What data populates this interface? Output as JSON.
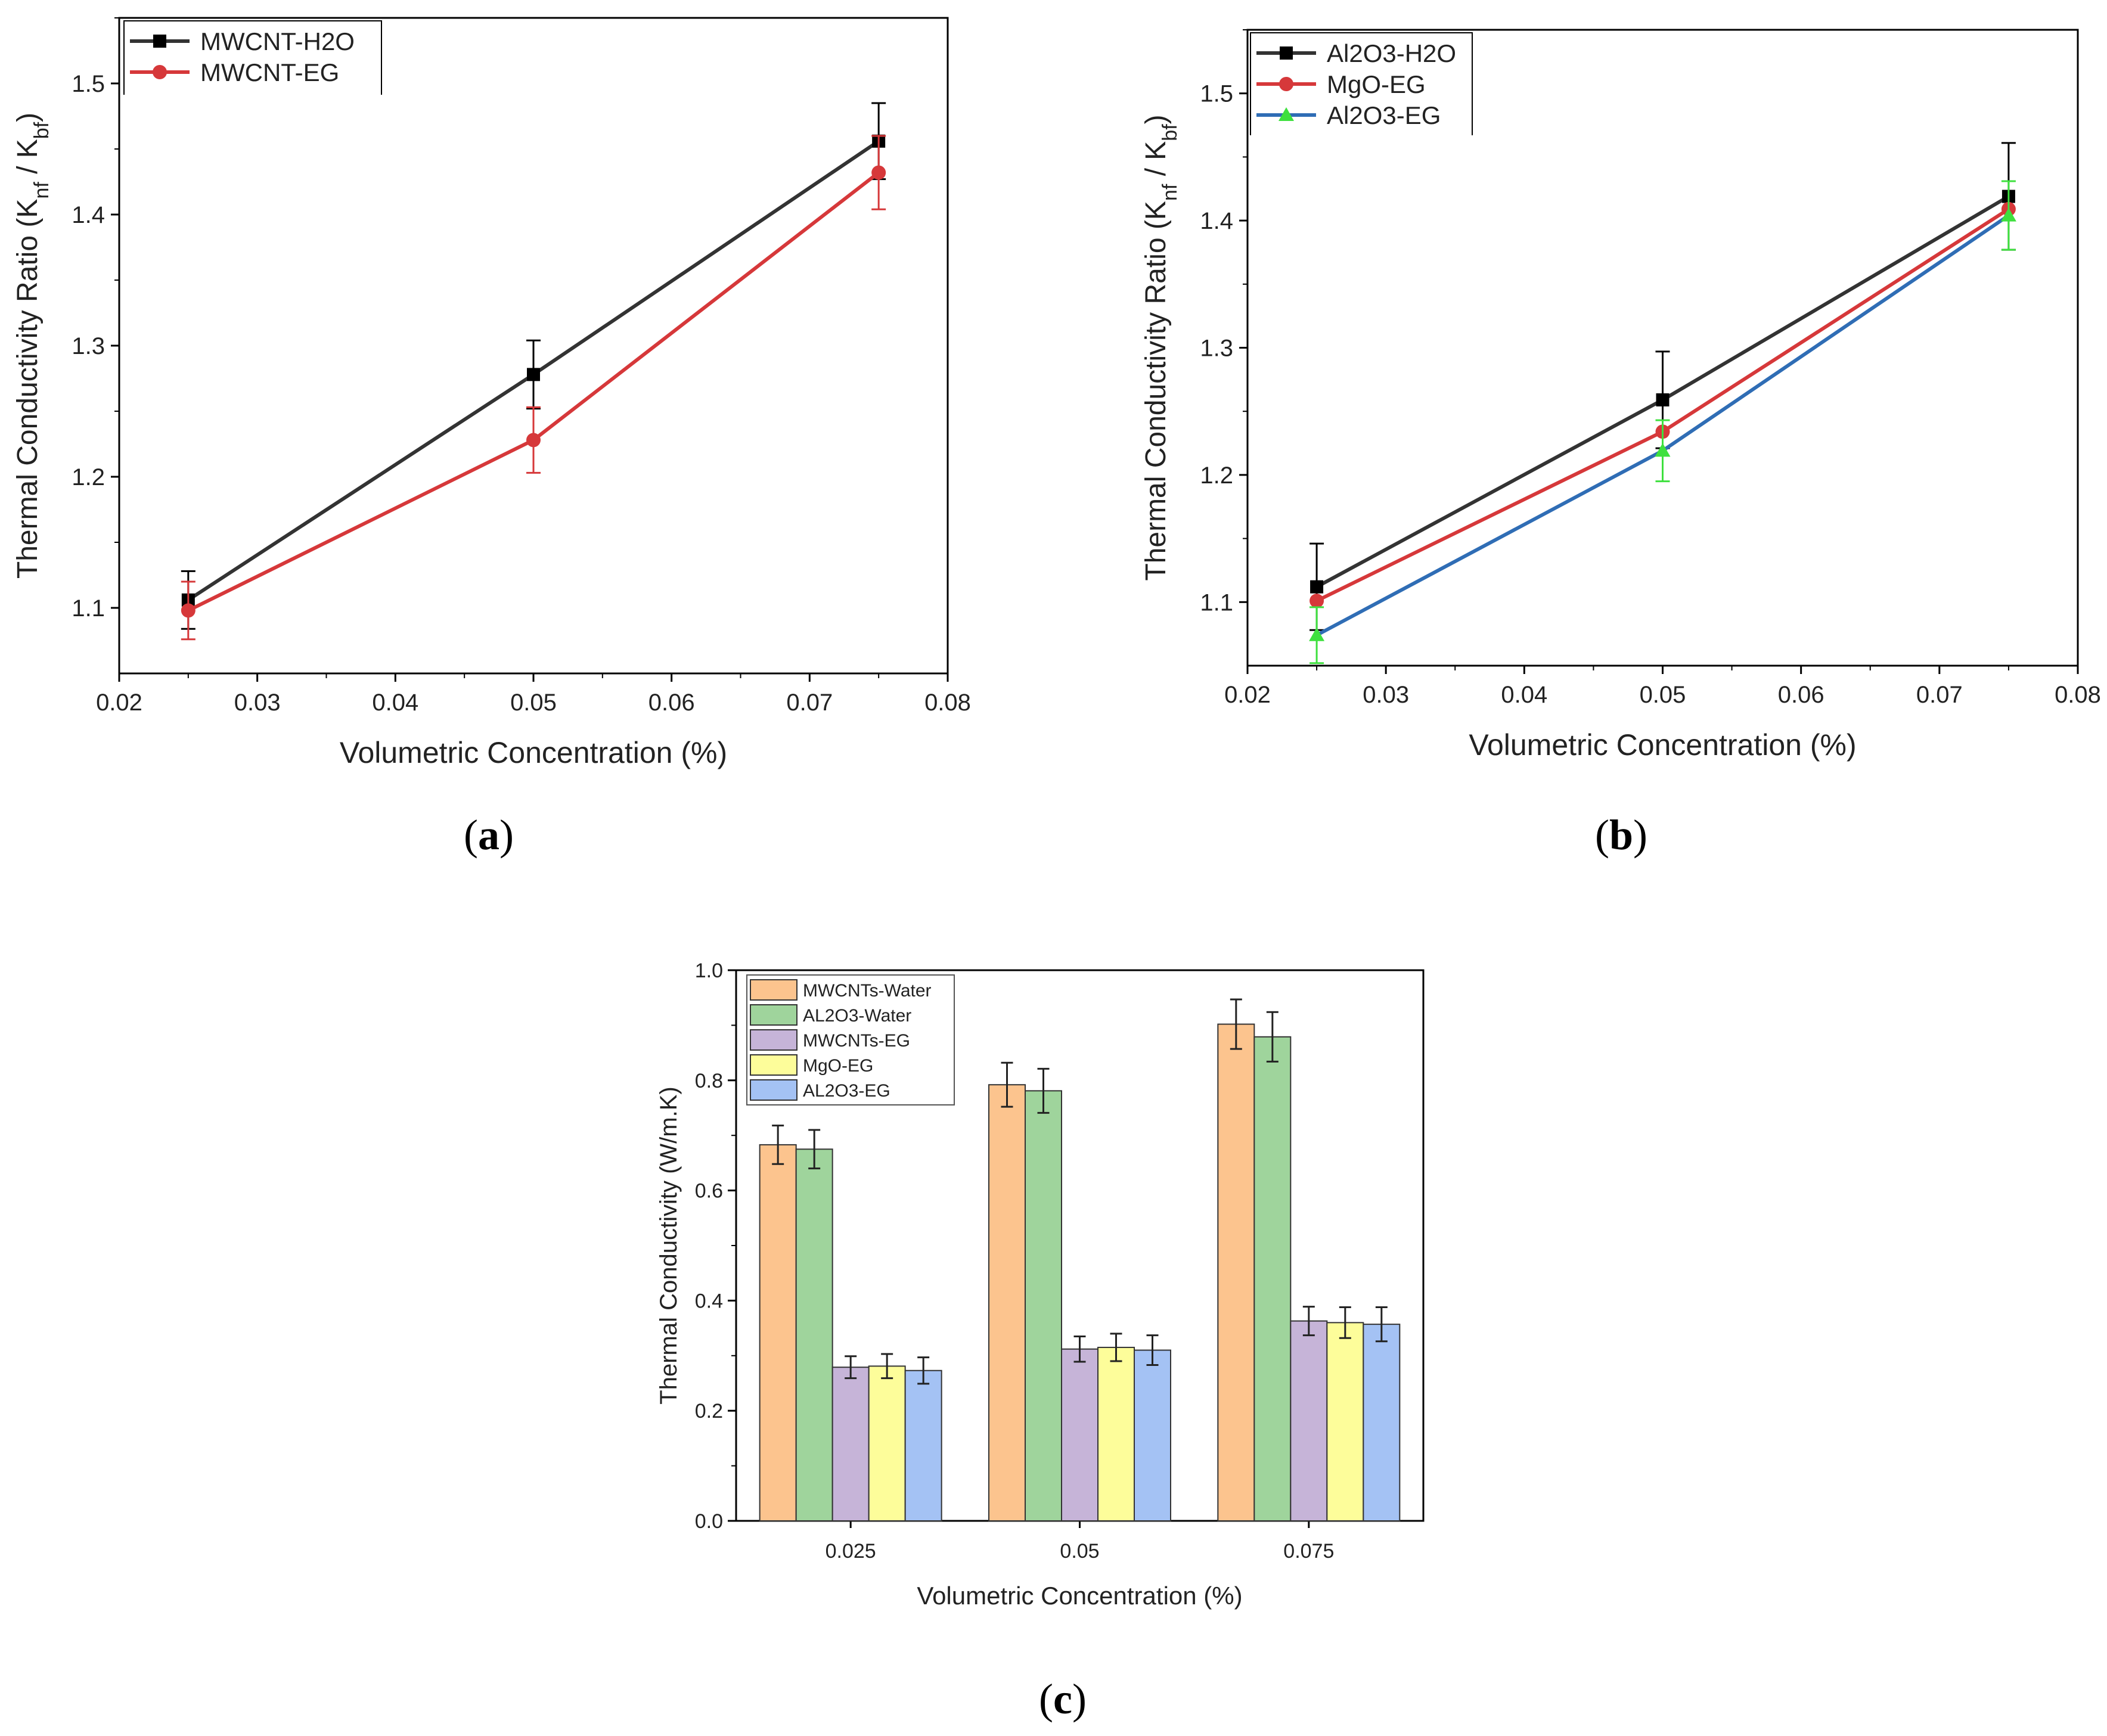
{
  "chart_data": [
    {
      "id": "a",
      "type": "line",
      "panel_label": "(a)",
      "panel_letter": "a",
      "xlabel": "Volumetric Concentration (%)",
      "ylabel_main": "Thermal Conductivity Ratio (K",
      "ylabel_sub1": "nf",
      "ylabel_mid": " / K",
      "ylabel_sub2": "bf",
      "ylabel_end": ")",
      "xlim": [
        0.02,
        0.08
      ],
      "ylim": [
        1.05,
        1.55
      ],
      "xticks": [
        0.02,
        0.03,
        0.04,
        0.05,
        0.06,
        0.07,
        0.08
      ],
      "xtick_labels": [
        "0.02",
        "0.03",
        "0.04",
        "0.05",
        "0.06",
        "0.07",
        "0.08"
      ],
      "yticks": [
        1.1,
        1.2,
        1.3,
        1.4,
        1.5
      ],
      "ytick_labels": [
        "1.1",
        "1.2",
        "1.3",
        "1.4",
        "1.5"
      ],
      "legend_position": "top-left",
      "series": [
        {
          "name": "MWCNT-H2O",
          "color": "#333333",
          "marker": "square",
          "x": [
            0.025,
            0.05,
            0.075
          ],
          "y": [
            1.106,
            1.278,
            1.456
          ],
          "err": [
            0.022,
            0.026,
            0.029
          ]
        },
        {
          "name": "MWCNT-EG",
          "color": "#d6383a",
          "marker": "circle",
          "x": [
            0.025,
            0.05,
            0.075
          ],
          "y": [
            1.098,
            1.228,
            1.432
          ],
          "err": [
            0.022,
            0.025,
            0.028
          ]
        }
      ]
    },
    {
      "id": "b",
      "type": "line",
      "panel_label": "(b)",
      "panel_letter": "b",
      "xlabel": "Volumetric Concentration (%)",
      "ylabel_main": "Thermal Conductivity Ratio (K",
      "ylabel_sub1": "nf",
      "ylabel_mid": " / K",
      "ylabel_sub2": "bf",
      "ylabel_end": ")",
      "xlim": [
        0.02,
        0.08
      ],
      "ylim": [
        1.05,
        1.55
      ],
      "xticks": [
        0.02,
        0.03,
        0.04,
        0.05,
        0.06,
        0.07,
        0.08
      ],
      "xtick_labels": [
        "0.02",
        "0.03",
        "0.04",
        "0.05",
        "0.06",
        "0.07",
        "0.08"
      ],
      "yticks": [
        1.1,
        1.2,
        1.3,
        1.4,
        1.5
      ],
      "ytick_labels": [
        "1.1",
        "1.2",
        "1.3",
        "1.4",
        "1.5"
      ],
      "legend_position": "top-left",
      "series": [
        {
          "name": "Al2O3-H2O",
          "color": "#333333",
          "marker": "square",
          "x": [
            0.025,
            0.05,
            0.075
          ],
          "y": [
            1.112,
            1.259,
            1.419
          ],
          "err": [
            0.034,
            0.038,
            0.042
          ]
        },
        {
          "name": "MgO-EG",
          "color": "#d6383a",
          "marker": "circle",
          "x": [
            0.025,
            0.05,
            0.075
          ],
          "y": [
            1.101,
            1.234,
            1.409
          ],
          "err": [
            0.0,
            0.0,
            0.0
          ]
        },
        {
          "name": "Al2O3-EG",
          "color": "#2f6db5",
          "marker": "triangle",
          "marker_color": "#3ee03e",
          "x": [
            0.025,
            0.05,
            0.075
          ],
          "y": [
            1.074,
            1.219,
            1.404
          ],
          "err": [
            0.022,
            0.024,
            0.027
          ]
        }
      ]
    },
    {
      "id": "c",
      "type": "bar",
      "panel_label": "(c)",
      "panel_letter": "c",
      "xlabel": "Volumetric Concentration (%)",
      "ylabel": "Thermal Conductivity (W/m.K)",
      "ylim": [
        0.0,
        1.0
      ],
      "yticks": [
        0.0,
        0.2,
        0.4,
        0.6,
        0.8,
        1.0
      ],
      "ytick_labels": [
        "0.0",
        "0.2",
        "0.4",
        "0.6",
        "0.8",
        "1.0"
      ],
      "categories": [
        "0.025",
        "0.05",
        "0.075"
      ],
      "legend_position": "top-left",
      "series": [
        {
          "name": "MWCNTs-Water",
          "color": "#fcc48e",
          "values": [
            0.683,
            0.792,
            0.902
          ],
          "err": [
            0.035,
            0.04,
            0.045
          ]
        },
        {
          "name": "AL2O3-Water",
          "color": "#9fd49c",
          "values": [
            0.675,
            0.781,
            0.879
          ],
          "err": [
            0.035,
            0.04,
            0.045
          ]
        },
        {
          "name": "MWCNTs-EG",
          "color": "#c6b4d8",
          "values": [
            0.279,
            0.312,
            0.363
          ],
          "err": [
            0.02,
            0.023,
            0.026
          ]
        },
        {
          "name": "MgO-EG",
          "color": "#fdfd9a",
          "values": [
            0.281,
            0.315,
            0.36
          ],
          "err": [
            0.022,
            0.025,
            0.028
          ]
        },
        {
          "name": "AL2O3-EG",
          "color": "#a4c2f4",
          "values": [
            0.273,
            0.31,
            0.357
          ],
          "err": [
            0.024,
            0.027,
            0.031
          ]
        }
      ]
    }
  ]
}
